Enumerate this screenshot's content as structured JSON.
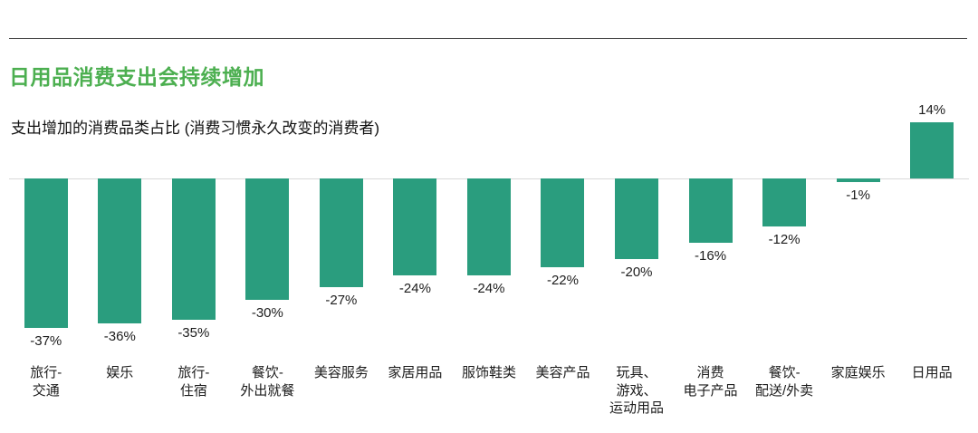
{
  "page": {
    "title": "日用品消费支出会持续增加",
    "subtitle": "支出增加的消费品类占比 (消费习惯永久改变的消费者)"
  },
  "colors": {
    "title_green": "#4caf50",
    "bar_teal": "#2a9d7e",
    "axis_gray": "#d8d8d8"
  },
  "chart_data": {
    "type": "bar",
    "title": "日用品消费支出会持续增加",
    "subtitle": "支出增加的消费品类占比 (消费习惯永久改变的消费者)",
    "categories": [
      "旅行-\n交通",
      "娱乐",
      "旅行-\n住宿",
      "餐饮-\n外出就餐",
      "美容服务",
      "家居用品",
      "服饰鞋类",
      "美容产品",
      "玩具、\n游戏、\n运动用品",
      "消费\n电子产品",
      "餐饮-\n配送/外卖",
      "家庭娱乐",
      "日用品"
    ],
    "values": [
      -37,
      -36,
      -35,
      -30,
      -27,
      -24,
      -24,
      -22,
      -20,
      -16,
      -12,
      -1,
      14
    ],
    "value_labels": [
      "-37%",
      "-36%",
      "-35%",
      "-30%",
      "-27%",
      "-24%",
      "-24%",
      "-22%",
      "-20%",
      "-16%",
      "-12%",
      "-1%",
      "14%"
    ],
    "bar_color": "#2a9d7e",
    "xlabel": "",
    "ylabel": "",
    "ylim": [
      -40,
      16
    ],
    "grid": false,
    "legend": null,
    "zero_baseline": true
  }
}
